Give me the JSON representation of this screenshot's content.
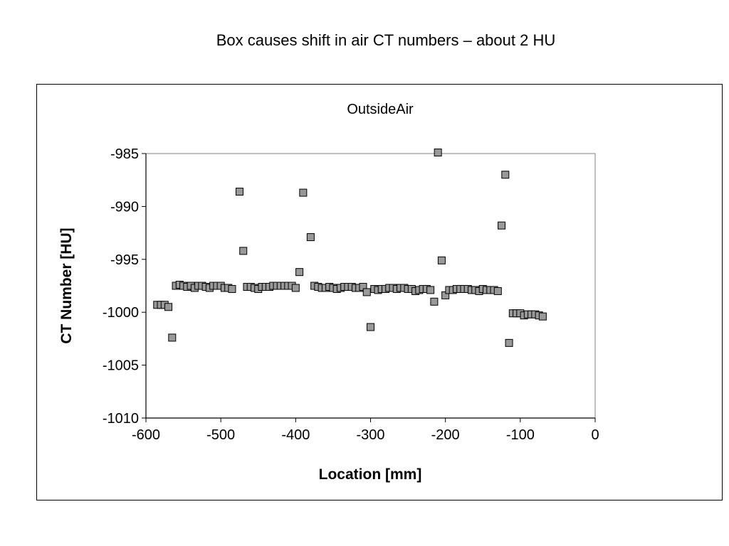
{
  "slide": {
    "title": "Box causes shift in air CT numbers – about 2 HU"
  },
  "chart_data": {
    "type": "scatter",
    "title": "OutsideAir",
    "xlabel": "Location [mm]",
    "ylabel": "CT Number [HU]",
    "xlim": [
      -600,
      0
    ],
    "ylim": [
      -1010,
      -985
    ],
    "xticks": [
      -600,
      -500,
      -400,
      -300,
      -200,
      -100,
      0
    ],
    "yticks": [
      -985,
      -990,
      -995,
      -1000,
      -1005,
      -1010
    ],
    "grid": false,
    "legend": "none",
    "marker_color": "#999999",
    "marker_edge": "#000000",
    "series": [
      {
        "x": [
          -585,
          -580,
          -575,
          -570,
          -565,
          -560,
          -555,
          -550,
          -545,
          -540,
          -535,
          -530,
          -525,
          -520,
          -515,
          -510,
          -505,
          -500,
          -495,
          -490,
          -485,
          -475,
          -470,
          -465,
          -460,
          -455,
          -450,
          -445,
          -440,
          -435,
          -430,
          -425,
          -420,
          -415,
          -410,
          -405,
          -400,
          -395,
          -390,
          -380,
          -375,
          -370,
          -365,
          -360,
          -355,
          -350,
          -345,
          -340,
          -335,
          -330,
          -325,
          -320,
          -315,
          -310,
          -305,
          -300,
          -295,
          -290,
          -285,
          -280,
          -275,
          -270,
          -265,
          -260,
          -255,
          -250,
          -245,
          -240,
          -235,
          -230,
          -225,
          -220,
          -215,
          -210,
          -205,
          -200,
          -195,
          -190,
          -185,
          -180,
          -175,
          -170,
          -165,
          -160,
          -155,
          -150,
          -145,
          -140,
          -135,
          -130,
          -125,
          -120,
          -115,
          -110,
          -105,
          -100,
          -95,
          -90,
          -85,
          -80,
          -75,
          -70
        ],
        "y": [
          -999.3,
          -999.3,
          -999.3,
          -999.5,
          -1002.4,
          -997.5,
          -997.4,
          -997.5,
          -997.6,
          -997.5,
          -997.7,
          -997.5,
          -997.5,
          -997.6,
          -997.7,
          -997.5,
          -997.5,
          -997.5,
          -997.7,
          -997.7,
          -997.8,
          -988.6,
          -994.2,
          -997.6,
          -997.6,
          -997.7,
          -997.8,
          -997.6,
          -997.6,
          -997.6,
          -997.5,
          -997.5,
          -997.5,
          -997.5,
          -997.5,
          -997.5,
          -997.7,
          -996.2,
          -988.7,
          -992.9,
          -997.5,
          -997.6,
          -997.7,
          -997.7,
          -997.6,
          -997.7,
          -997.8,
          -997.7,
          -997.6,
          -997.6,
          -997.6,
          -997.7,
          -997.7,
          -997.6,
          -998.1,
          -1001.4,
          -997.8,
          -997.9,
          -997.8,
          -997.8,
          -997.7,
          -997.7,
          -997.8,
          -997.7,
          -997.7,
          -997.8,
          -997.8,
          -998.0,
          -997.9,
          -997.8,
          -997.8,
          -997.9,
          -999.0,
          -984.9,
          -995.1,
          -998.4,
          -997.9,
          -997.9,
          -997.8,
          -997.8,
          -997.8,
          -997.8,
          -997.9,
          -997.9,
          -998.0,
          -997.8,
          -997.9,
          -997.9,
          -997.9,
          -998.0,
          -991.8,
          -987.0,
          -1002.9,
          -1000.1,
          -1000.1,
          -1000.1,
          -1000.3,
          -1000.2,
          -1000.2,
          -1000.2,
          -1000.3,
          -1000.4
        ]
      }
    ]
  }
}
